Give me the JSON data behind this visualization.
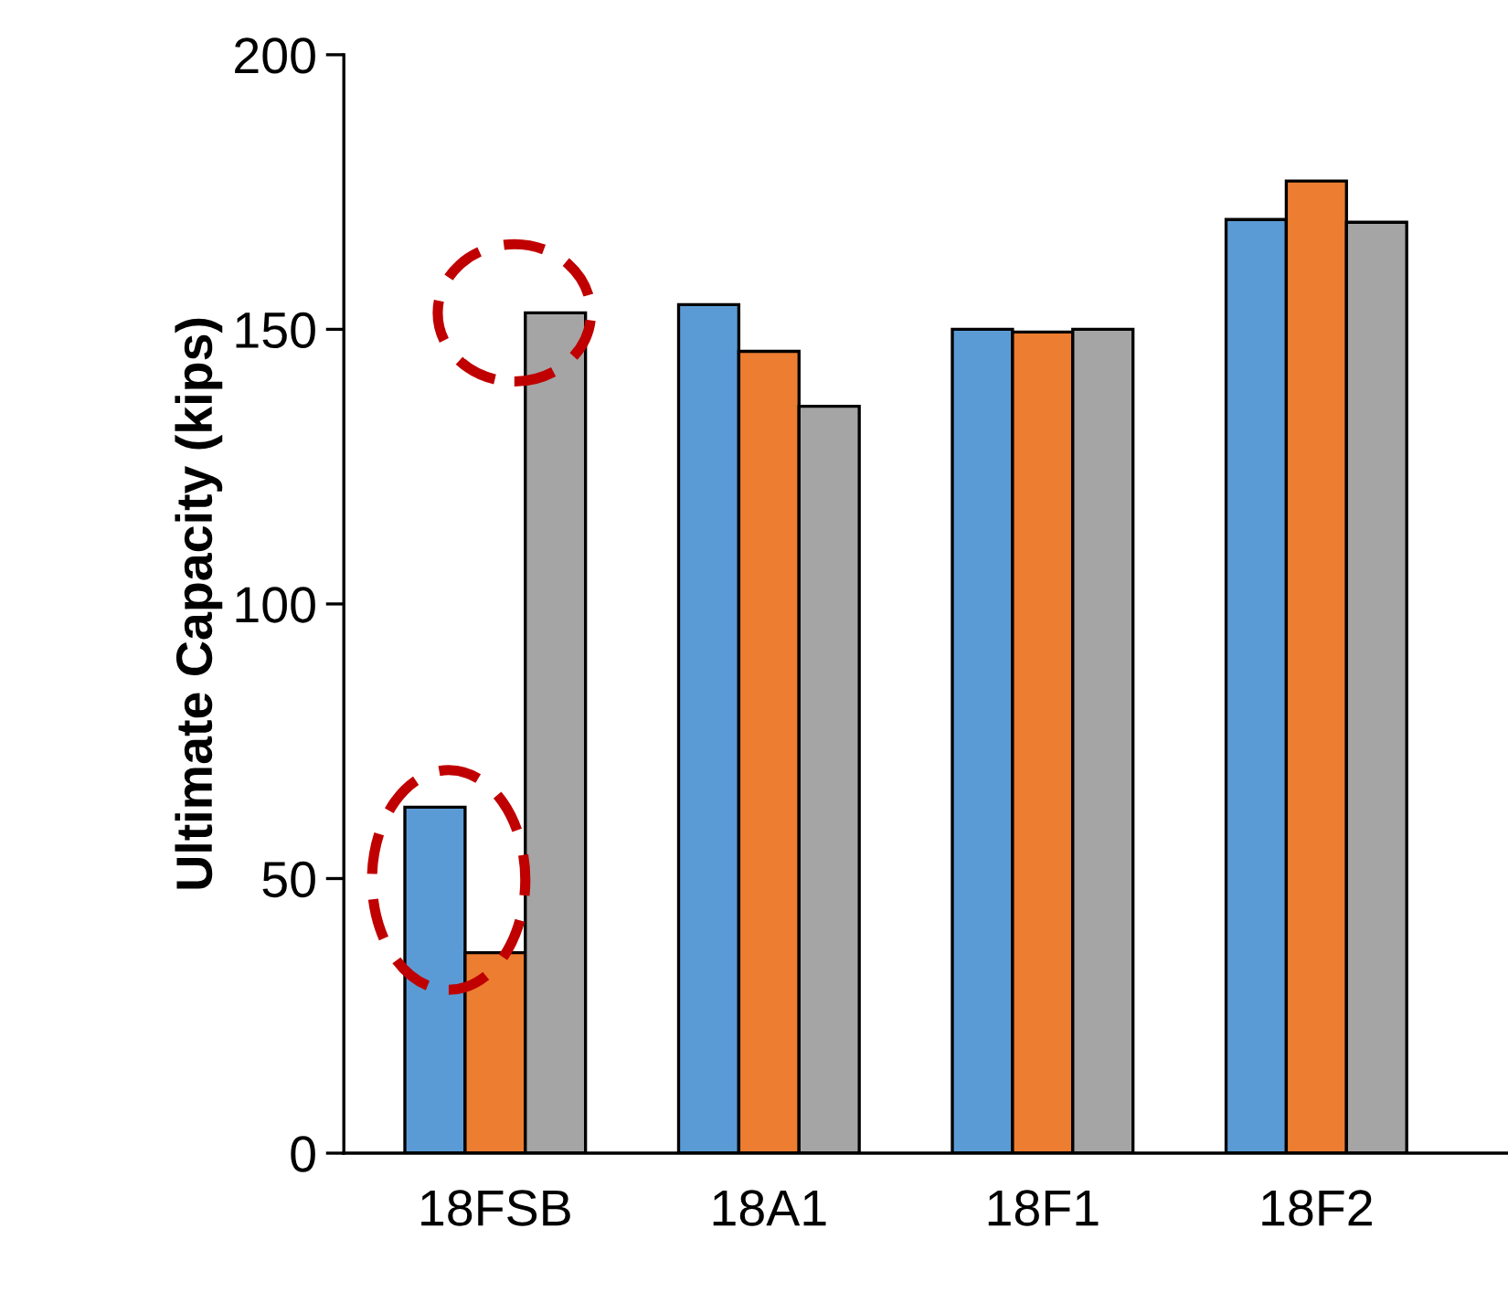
{
  "chart_data": {
    "type": "bar",
    "ylabel": "Ultimate Capacity (kips)",
    "categories": [
      "18FSB",
      "18A1",
      "18F1",
      "18F2"
    ],
    "series": [
      {
        "color": "#5b9bd5",
        "values": [
          63,
          154.5,
          150,
          170
        ]
      },
      {
        "color": "#ed7d31",
        "values": [
          36.5,
          146,
          149.5,
          177
        ]
      },
      {
        "color": "#a5a5a5",
        "values": [
          153,
          136,
          150,
          169.5
        ]
      }
    ],
    "ylim": [
      0,
      200
    ],
    "yticks": [
      0,
      50,
      100,
      150,
      200
    ],
    "grid": false,
    "legend": false
  }
}
